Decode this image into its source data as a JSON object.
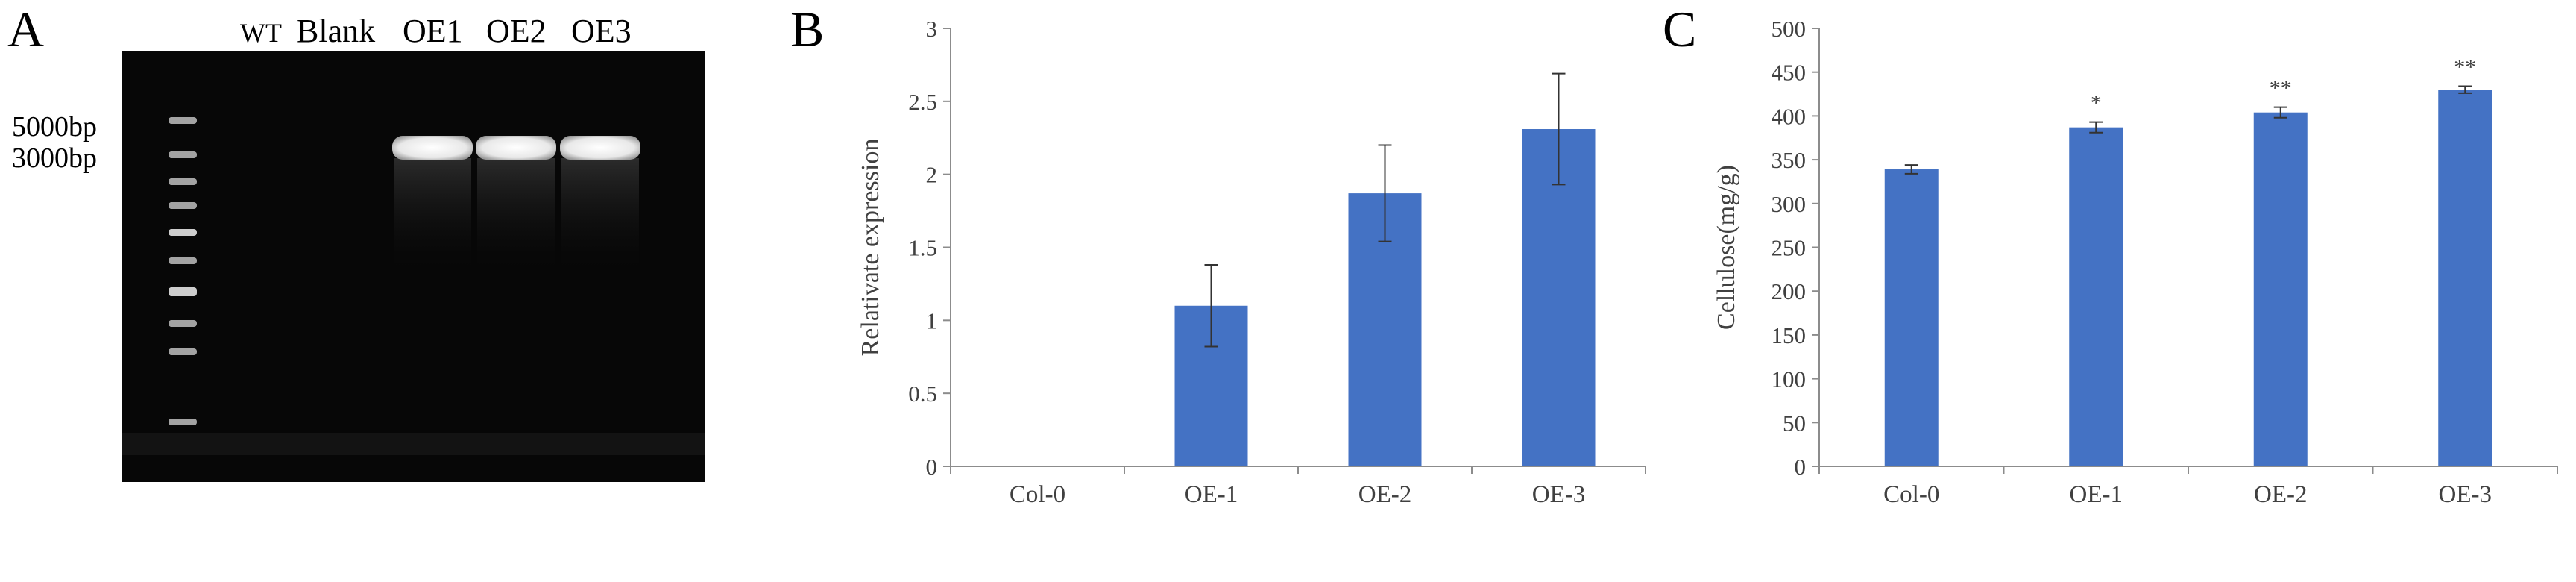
{
  "panels": {
    "a": {
      "letter": "A",
      "lane_labels": [
        "WT",
        "Blank",
        "OE1",
        "OE2",
        "OE3"
      ],
      "marker_labels": [
        "5000bp",
        "3000bp"
      ],
      "marker_bands": 9,
      "band_lanes": [
        2,
        3,
        4
      ]
    },
    "b": {
      "letter": "B"
    },
    "c": {
      "letter": "C"
    }
  },
  "chart_data": [
    {
      "type": "bar",
      "panel": "B",
      "categories": [
        "Col-0",
        "OE-1",
        "OE-2",
        "OE-3"
      ],
      "values": [
        0,
        1.1,
        1.87,
        2.31
      ],
      "errors": [
        0,
        0.28,
        0.33,
        0.38
      ],
      "annotations": [
        "",
        "",
        "",
        ""
      ],
      "ylabel": "Relativate expression",
      "xlabel": "",
      "ylim": [
        0,
        3
      ],
      "yticks": [
        0,
        0.5,
        1,
        1.5,
        2,
        2.5,
        3
      ],
      "ytick_labels": [
        "0",
        "0.5",
        "1",
        "1.5",
        "2",
        "2.5",
        "3"
      ],
      "bar_color": "#4472C4",
      "grid": false
    },
    {
      "type": "bar",
      "panel": "C",
      "categories": [
        "Col-0",
        "OE-1",
        "OE-2",
        "OE-3"
      ],
      "values": [
        339,
        387,
        404,
        430
      ],
      "errors": [
        5,
        6,
        6,
        4
      ],
      "annotations": [
        "",
        "*",
        "**",
        "**"
      ],
      "ylabel": "Cellulose(mg/g)",
      "xlabel": "",
      "ylim": [
        0,
        500
      ],
      "yticks": [
        0,
        50,
        100,
        150,
        200,
        250,
        300,
        350,
        400,
        450,
        500
      ],
      "ytick_labels": [
        "0",
        "50",
        "100",
        "150",
        "200",
        "250",
        "300",
        "350",
        "400",
        "450",
        "500"
      ],
      "bar_color": "#4472C4",
      "grid": false
    }
  ]
}
